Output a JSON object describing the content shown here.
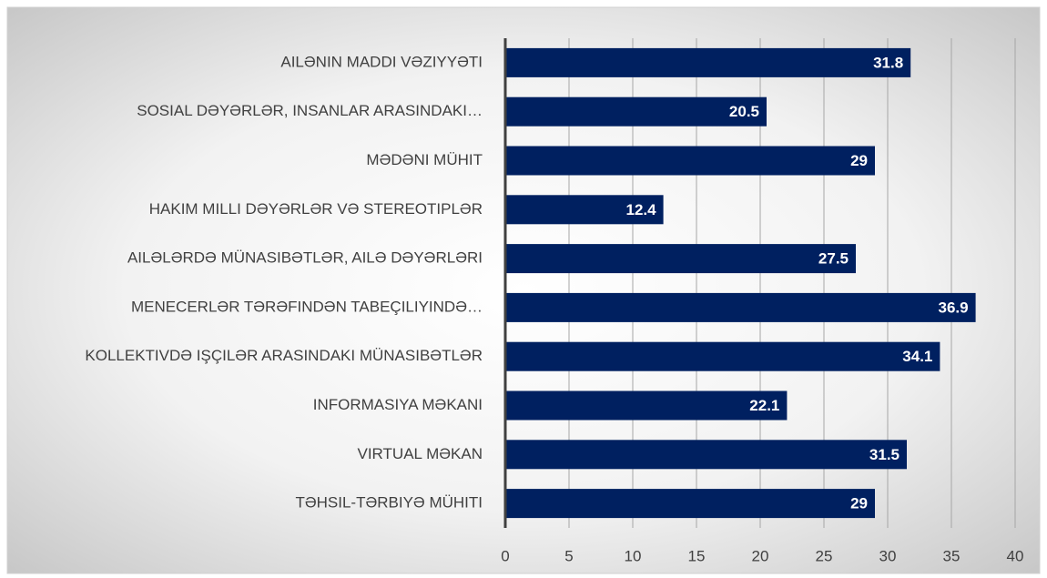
{
  "chart_data": {
    "type": "bar",
    "orientation": "horizontal",
    "categories": [
      "AILƏNIN MADDI VƏZIYYƏTI",
      "SOSIAL DƏYƏRLƏR, INSANLAR ARASINDAKI…",
      "MƏDƏNI MÜHIT",
      "HAKIM MILLI DƏYƏRLƏR VƏ STEREOTIPLƏR",
      "AILƏLƏRDƏ MÜNASIBƏTLƏR, AILƏ DƏYƏRLƏRI",
      "MENECERLƏR TƏRƏFINDƏN TABEÇILIYINDƏ…",
      "KOLLEKTIVDƏ IŞÇILƏR ARASINDAKI MÜNASIBƏTLƏR",
      "INFORMASIYA MƏKANI",
      "VIRTUAL MƏKAN",
      "TƏHSIL-TƏRBIYƏ MÜHITI"
    ],
    "values": [
      31.8,
      20.5,
      29,
      12.4,
      27.5,
      36.9,
      34.1,
      22.1,
      31.5,
      29
    ],
    "color": "#002060",
    "xlim": [
      0,
      40
    ],
    "xticks": [
      0,
      5,
      10,
      15,
      20,
      25,
      30,
      35,
      40
    ],
    "grid": true
  }
}
